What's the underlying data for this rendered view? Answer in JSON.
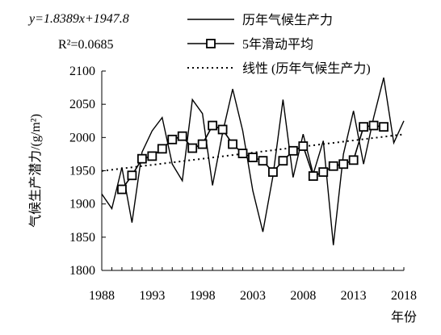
{
  "chart_data": {
    "type": "line",
    "x": [
      1988,
      1989,
      1990,
      1991,
      1992,
      1993,
      1994,
      1995,
      1996,
      1997,
      1998,
      1999,
      2000,
      2001,
      2002,
      2003,
      2004,
      2005,
      2006,
      2007,
      2008,
      2009,
      2010,
      2011,
      2012,
      2013,
      2014,
      2015,
      2016,
      2017,
      2018
    ],
    "series": [
      {
        "name": "历年气候生产力",
        "style": "solid",
        "values": [
          1915,
          1893,
          1955,
          1872,
          1978,
          2010,
          2030,
          1960,
          1935,
          2057,
          2036,
          1928,
          2007,
          2073,
          2010,
          1920,
          1858,
          1942,
          2057,
          1940,
          2005,
          1945,
          1995,
          1838,
          1975,
          2040,
          1960,
          2030,
          2090,
          1992,
          2025
        ]
      },
      {
        "name": "5年滑动平均",
        "style": "square-markers",
        "x": [
          1990,
          1991,
          1992,
          1993,
          1994,
          1995,
          1996,
          1997,
          1998,
          1999,
          2000,
          2001,
          2002,
          2003,
          2004,
          2005,
          2006,
          2007,
          2008,
          2009,
          2010,
          2011,
          2012,
          2013,
          2014,
          2015,
          2016
        ],
        "values": [
          1922,
          1943,
          1968,
          1972,
          1983,
          1997,
          2002,
          1984,
          1990,
          2018,
          2012,
          1990,
          1976,
          1970,
          1965,
          1948,
          1965,
          1980,
          1987,
          1942,
          1948,
          1957,
          1960,
          1966,
          2016,
          2018,
          2016
        ]
      },
      {
        "name": "线性 (历年气候生产力)",
        "style": "dotted",
        "fit": {
          "slope": 1.8389,
          "intercept": 1947.8,
          "x_origin": 1987
        }
      }
    ],
    "x_ticks": [
      "1988",
      "1993",
      "1998",
      "2003",
      "2008",
      "2013",
      "2018"
    ],
    "y_ticks": [
      "1800",
      "1850",
      "1900",
      "1950",
      "2000",
      "2050",
      "2100"
    ],
    "ylabel": "气候生产潜力/(g/m²)",
    "xlabel": "年份",
    "xlim": [
      1988,
      2018
    ],
    "ylim": [
      1800,
      2100
    ],
    "annotations": {
      "equation": "y=1.8389x+1947.8",
      "r_squared": "R²=0.0685"
    },
    "legend_position": "top-right",
    "grid": false
  }
}
